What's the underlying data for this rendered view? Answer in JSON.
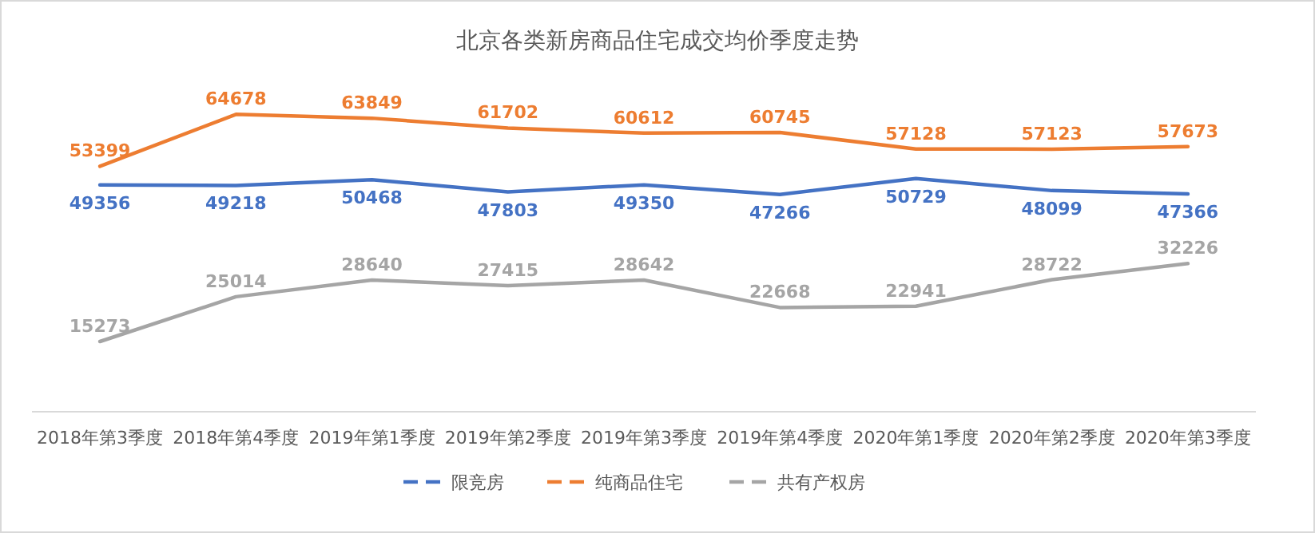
{
  "chart_data": {
    "type": "line",
    "title": "北京各类新房商品住宅成交均价季度走势",
    "categories": [
      "2018年第3季度",
      "2018年第4季度",
      "2019年第1季度",
      "2019年第2季度",
      "2019年第3季度",
      "2019年第4季度",
      "2020年第1季度",
      "2020年第2季度",
      "2020年第3季度"
    ],
    "series": [
      {
        "name": "限竞房",
        "color": "#4472c4",
        "values": [
          49356,
          49218,
          50468,
          47803,
          49350,
          47266,
          50729,
          48099,
          47366
        ]
      },
      {
        "name": "纯商品住宅",
        "color": "#ed7d31",
        "values": [
          53399,
          64678,
          63849,
          61702,
          60612,
          60745,
          57128,
          57123,
          57673
        ]
      },
      {
        "name": "共有产权房",
        "color": "#a5a5a5",
        "values": [
          15273,
          25014,
          28640,
          27415,
          28642,
          22668,
          22941,
          28722,
          32226
        ]
      }
    ],
    "data_labels": true,
    "legend": "bottom",
    "grid": false
  }
}
